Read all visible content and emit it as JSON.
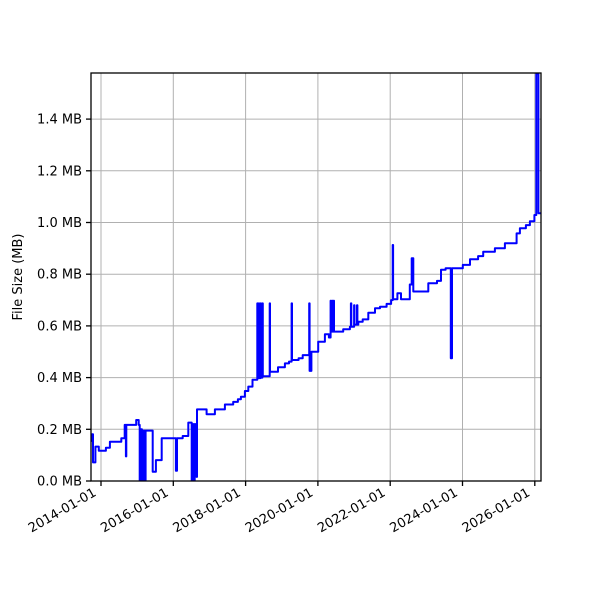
{
  "figure": {
    "background": "#ffffff"
  },
  "chart_data": {
    "type": "line",
    "title": "",
    "xlabel": "",
    "ylabel": "File Size (MB)",
    "grid": true,
    "legend_position": "none",
    "line_color": "#0000ff",
    "grid_color": "#b0b0b0",
    "axis_color": "#000000",
    "xlim": [
      "2013-09-22",
      "2026-03-05"
    ],
    "ylim": [
      0,
      1.579
    ],
    "x_tick_labels": [
      "2014-01-01",
      "2016-01-01",
      "2018-01-01",
      "2020-01-01",
      "2022-01-01",
      "2024-01-01",
      "2026-01-01"
    ],
    "y_tick_values": [
      0.0,
      0.2,
      0.4,
      0.6,
      0.8,
      1.0,
      1.2,
      1.4
    ],
    "y_tick_labels": [
      "0.0 MB",
      "0.2 MB",
      "0.4 MB",
      "0.6 MB",
      "0.8 MB",
      "1.0 MB",
      "1.2 MB",
      "1.4 MB"
    ],
    "series": [
      {
        "name": "File Size",
        "step": "after",
        "points": [
          [
            "2013-09-25",
            0.155
          ],
          [
            "2013-10-03",
            0.181
          ],
          [
            "2013-10-12",
            0.072
          ],
          [
            "2013-11-05",
            0.133
          ],
          [
            "2013-12-10",
            0.117
          ],
          [
            "2014-02-20",
            0.129
          ],
          [
            "2014-04-01",
            0.152
          ],
          [
            "2014-07-25",
            0.165
          ],
          [
            "2014-08-28",
            0.217
          ],
          [
            "2014-09-10",
            0.095
          ],
          [
            "2014-09-14",
            0.217
          ],
          [
            "2014-12-23",
            0.236
          ],
          [
            "2015-01-17",
            0.217
          ],
          [
            "2015-01-27",
            0.003
          ],
          [
            "2015-01-31",
            0.2
          ],
          [
            "2015-02-08",
            0.003
          ],
          [
            "2015-02-12",
            0.2
          ],
          [
            "2015-02-18",
            0.003
          ],
          [
            "2015-02-22",
            0.195
          ],
          [
            "2015-03-12",
            0.003
          ],
          [
            "2015-03-16",
            0.195
          ],
          [
            "2015-03-24",
            0.003
          ],
          [
            "2015-03-28",
            0.195
          ],
          [
            "2015-06-07",
            0.036
          ],
          [
            "2015-07-10",
            0.081
          ],
          [
            "2015-09-06",
            0.165
          ],
          [
            "2016-01-28",
            0.04
          ],
          [
            "2016-02-08",
            0.165
          ],
          [
            "2016-04-05",
            0.174
          ],
          [
            "2016-06-01",
            0.226
          ],
          [
            "2016-07-05",
            0.003
          ],
          [
            "2016-07-09",
            0.22
          ],
          [
            "2016-07-18",
            0.003
          ],
          [
            "2016-07-22",
            0.22
          ],
          [
            "2016-08-01",
            0.003
          ],
          [
            "2016-08-05",
            0.22
          ],
          [
            "2016-08-24",
            0.016
          ],
          [
            "2016-08-28",
            0.277
          ],
          [
            "2016-12-03",
            0.258
          ],
          [
            "2017-02-25",
            0.277
          ],
          [
            "2017-06-06",
            0.296
          ],
          [
            "2017-08-29",
            0.306
          ],
          [
            "2017-10-15",
            0.316
          ],
          [
            "2017-11-15",
            0.326
          ],
          [
            "2017-12-25",
            0.348
          ],
          [
            "2018-01-28",
            0.365
          ],
          [
            "2018-03-12",
            0.392
          ],
          [
            "2018-04-29",
            0.687
          ],
          [
            "2018-05-03",
            0.398
          ],
          [
            "2018-05-14",
            0.687
          ],
          [
            "2018-05-18",
            0.398
          ],
          [
            "2018-06-01",
            0.687
          ],
          [
            "2018-06-05",
            0.4
          ],
          [
            "2018-06-20",
            0.687
          ],
          [
            "2018-06-24",
            0.405
          ],
          [
            "2018-09-01",
            0.687
          ],
          [
            "2018-09-05",
            0.423
          ],
          [
            "2018-11-24",
            0.44
          ],
          [
            "2019-02-02",
            0.455
          ],
          [
            "2019-03-15",
            0.462
          ],
          [
            "2019-04-11",
            0.687
          ],
          [
            "2019-04-15",
            0.468
          ],
          [
            "2019-06-20",
            0.475
          ],
          [
            "2019-08-01",
            0.487
          ],
          [
            "2019-10-06",
            0.687
          ],
          [
            "2019-10-10",
            0.426
          ],
          [
            "2019-10-28",
            0.5
          ],
          [
            "2020-01-05",
            0.539
          ],
          [
            "2020-03-12",
            0.568
          ],
          [
            "2020-04-22",
            0.555
          ],
          [
            "2020-05-09",
            0.697
          ],
          [
            "2020-05-13",
            0.578
          ],
          [
            "2020-05-24",
            0.697
          ],
          [
            "2020-05-28",
            0.578
          ],
          [
            "2020-06-08",
            0.697
          ],
          [
            "2020-06-12",
            0.578
          ],
          [
            "2020-09-13",
            0.587
          ],
          [
            "2020-11-20",
            0.597
          ],
          [
            "2020-11-30",
            0.687
          ],
          [
            "2020-12-04",
            0.597
          ],
          [
            "2021-01-01",
            0.68
          ],
          [
            "2021-01-05",
            0.605
          ],
          [
            "2021-01-31",
            0.68
          ],
          [
            "2021-02-04",
            0.605
          ],
          [
            "2021-02-13",
            0.616
          ],
          [
            "2021-03-29",
            0.625
          ],
          [
            "2021-05-25",
            0.651
          ],
          [
            "2021-07-31",
            0.668
          ],
          [
            "2021-09-20",
            0.674
          ],
          [
            "2021-11-26",
            0.685
          ],
          [
            "2022-01-10",
            0.7
          ],
          [
            "2022-01-26",
            0.913
          ],
          [
            "2022-01-30",
            0.703
          ],
          [
            "2022-03-15",
            0.726
          ],
          [
            "2022-04-20",
            0.703
          ],
          [
            "2022-07-18",
            0.76
          ],
          [
            "2022-08-06",
            0.862
          ],
          [
            "2022-08-22",
            0.733
          ],
          [
            "2023-01-21",
            0.765
          ],
          [
            "2023-04-19",
            0.774
          ],
          [
            "2023-05-29",
            0.817
          ],
          [
            "2023-07-15",
            0.823
          ],
          [
            "2023-09-05",
            0.475
          ],
          [
            "2023-09-17",
            0.823
          ],
          [
            "2024-01-05",
            0.836
          ],
          [
            "2024-03-17",
            0.858
          ],
          [
            "2024-06-07",
            0.87
          ],
          [
            "2024-07-29",
            0.887
          ],
          [
            "2024-11-24",
            0.9
          ],
          [
            "2025-03-05",
            0.92
          ],
          [
            "2025-07-01",
            0.958
          ],
          [
            "2025-08-03",
            0.978
          ],
          [
            "2025-10-03",
            0.99
          ],
          [
            "2025-11-12",
            1.005
          ],
          [
            "2025-12-28",
            1.029
          ],
          [
            "2026-01-16",
            1.575
          ],
          [
            "2026-02-04",
            1.575
          ],
          [
            "2026-02-06",
            1.036
          ],
          [
            "2026-03-02",
            1.036
          ]
        ]
      }
    ]
  }
}
